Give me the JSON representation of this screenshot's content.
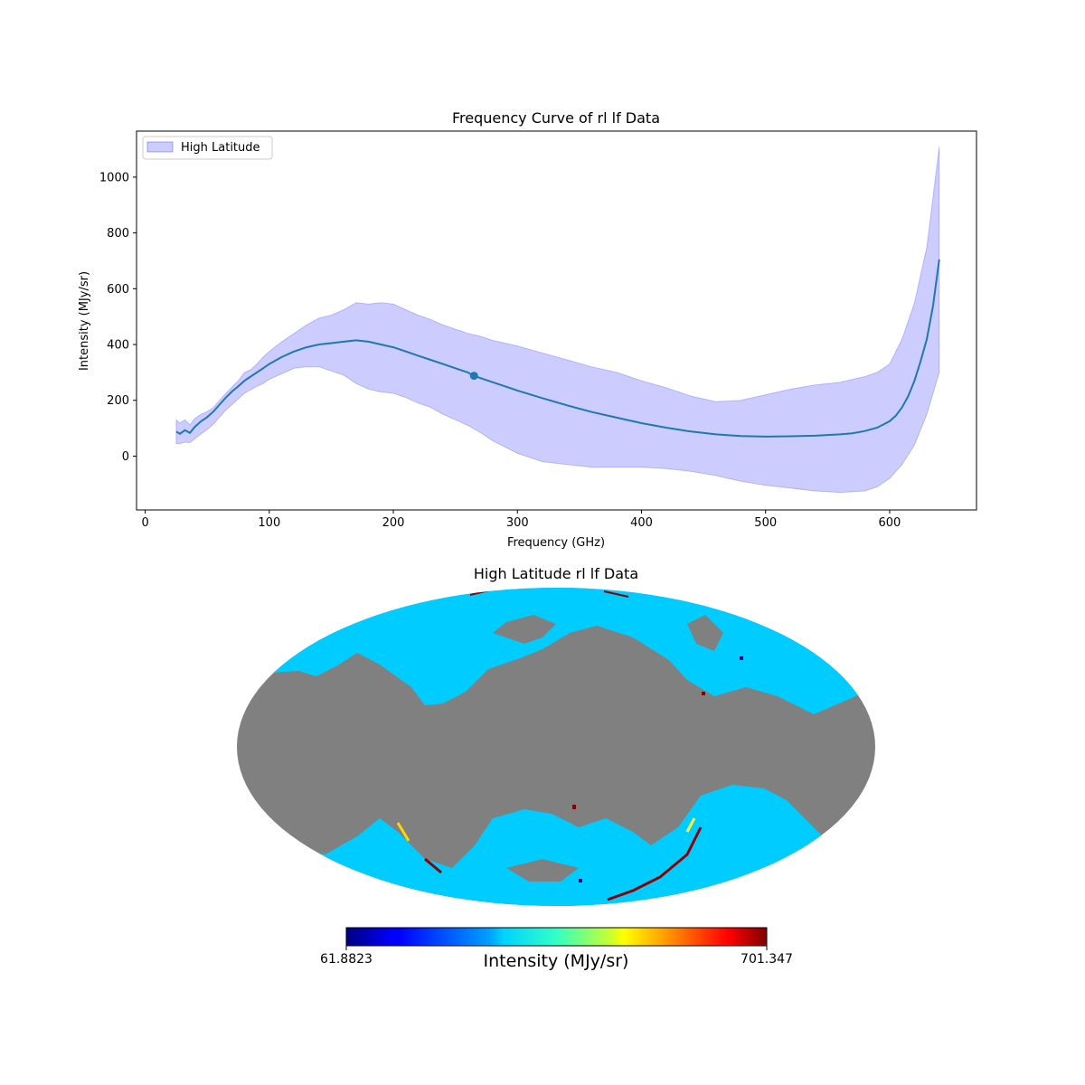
{
  "colors": {
    "line": "#1f77b4",
    "band_fill": "#0000ff",
    "band_opacity": 0.2,
    "mask_gray": "#808080",
    "map_base": "#00ccff"
  },
  "chart_data": [
    {
      "type": "line",
      "title": "Frequency Curve of rl lf Data",
      "xlabel": "Frequency (GHz)",
      "ylabel": "Intensity (MJy/sr)",
      "xlim": [
        -7,
        670
      ],
      "ylim": [
        -193,
        1165
      ],
      "xticks": [
        0,
        100,
        200,
        300,
        400,
        500,
        600
      ],
      "yticks": [
        0,
        200,
        400,
        600,
        800,
        1000
      ],
      "grid": false,
      "legend": {
        "placement": "upper-left",
        "entries": [
          "High Latitude"
        ]
      },
      "series": [
        {
          "kind": "mean-line",
          "x": [
            25,
            28,
            32,
            36,
            40,
            45,
            50,
            55,
            60,
            65,
            70,
            75,
            80,
            85,
            90,
            95,
            100,
            110,
            120,
            130,
            140,
            150,
            160,
            170,
            180,
            190,
            200,
            210,
            220,
            230,
            240,
            250,
            260,
            265,
            270,
            280,
            290,
            300,
            320,
            340,
            360,
            380,
            400,
            420,
            440,
            460,
            480,
            500,
            520,
            540,
            560,
            570,
            580,
            590,
            600,
            605,
            610,
            615,
            620,
            625,
            630,
            635,
            640
          ],
          "y": [
            88,
            80,
            93,
            83,
            105,
            125,
            140,
            160,
            185,
            210,
            232,
            250,
            270,
            285,
            300,
            315,
            330,
            355,
            375,
            390,
            400,
            405,
            410,
            415,
            410,
            400,
            390,
            375,
            360,
            345,
            330,
            315,
            300,
            288,
            280,
            265,
            250,
            235,
            208,
            182,
            158,
            138,
            118,
            102,
            88,
            78,
            72,
            70,
            71,
            73,
            78,
            82,
            90,
            102,
            125,
            145,
            175,
            215,
            270,
            340,
            420,
            540,
            705
          ]
        },
        {
          "kind": "band",
          "name": "High Latitude",
          "x": [
            25,
            28,
            32,
            36,
            40,
            45,
            50,
            55,
            60,
            65,
            70,
            75,
            80,
            85,
            90,
            95,
            100,
            110,
            120,
            130,
            140,
            150,
            160,
            170,
            180,
            190,
            200,
            210,
            220,
            230,
            240,
            250,
            260,
            270,
            280,
            300,
            320,
            340,
            360,
            380,
            400,
            420,
            440,
            460,
            480,
            500,
            520,
            540,
            560,
            570,
            580,
            590,
            600,
            610,
            620,
            630,
            640
          ],
          "upper": [
            130,
            118,
            130,
            112,
            135,
            150,
            160,
            175,
            200,
            225,
            248,
            270,
            300,
            310,
            330,
            355,
            375,
            410,
            440,
            470,
            495,
            505,
            525,
            550,
            545,
            550,
            545,
            525,
            505,
            490,
            470,
            455,
            440,
            430,
            415,
            395,
            370,
            345,
            320,
            300,
            270,
            245,
            215,
            195,
            200,
            220,
            240,
            255,
            265,
            275,
            285,
            300,
            330,
            420,
            550,
            750,
            1110
          ],
          "lower": [
            45,
            45,
            50,
            48,
            62,
            80,
            95,
            115,
            140,
            165,
            185,
            205,
            225,
            238,
            250,
            260,
            275,
            295,
            315,
            320,
            320,
            305,
            290,
            260,
            240,
            230,
            225,
            210,
            190,
            175,
            150,
            130,
            110,
            85,
            55,
            10,
            -20,
            -30,
            -40,
            -40,
            -40,
            -45,
            -55,
            -70,
            -90,
            -105,
            -115,
            -125,
            -130,
            -128,
            -125,
            -110,
            -80,
            -30,
            40,
            150,
            300
          ]
        },
        {
          "kind": "marker",
          "x": [
            265
          ],
          "y": [
            288
          ]
        }
      ]
    },
    {
      "type": "heatmap",
      "projection": "mollweide",
      "title": "High Latitude rl lf Data",
      "colorbar": {
        "colormap": "jet",
        "min_label": "61.8823",
        "max_label": "701.347",
        "label": "Intensity (MJy/sr)"
      }
    }
  ]
}
